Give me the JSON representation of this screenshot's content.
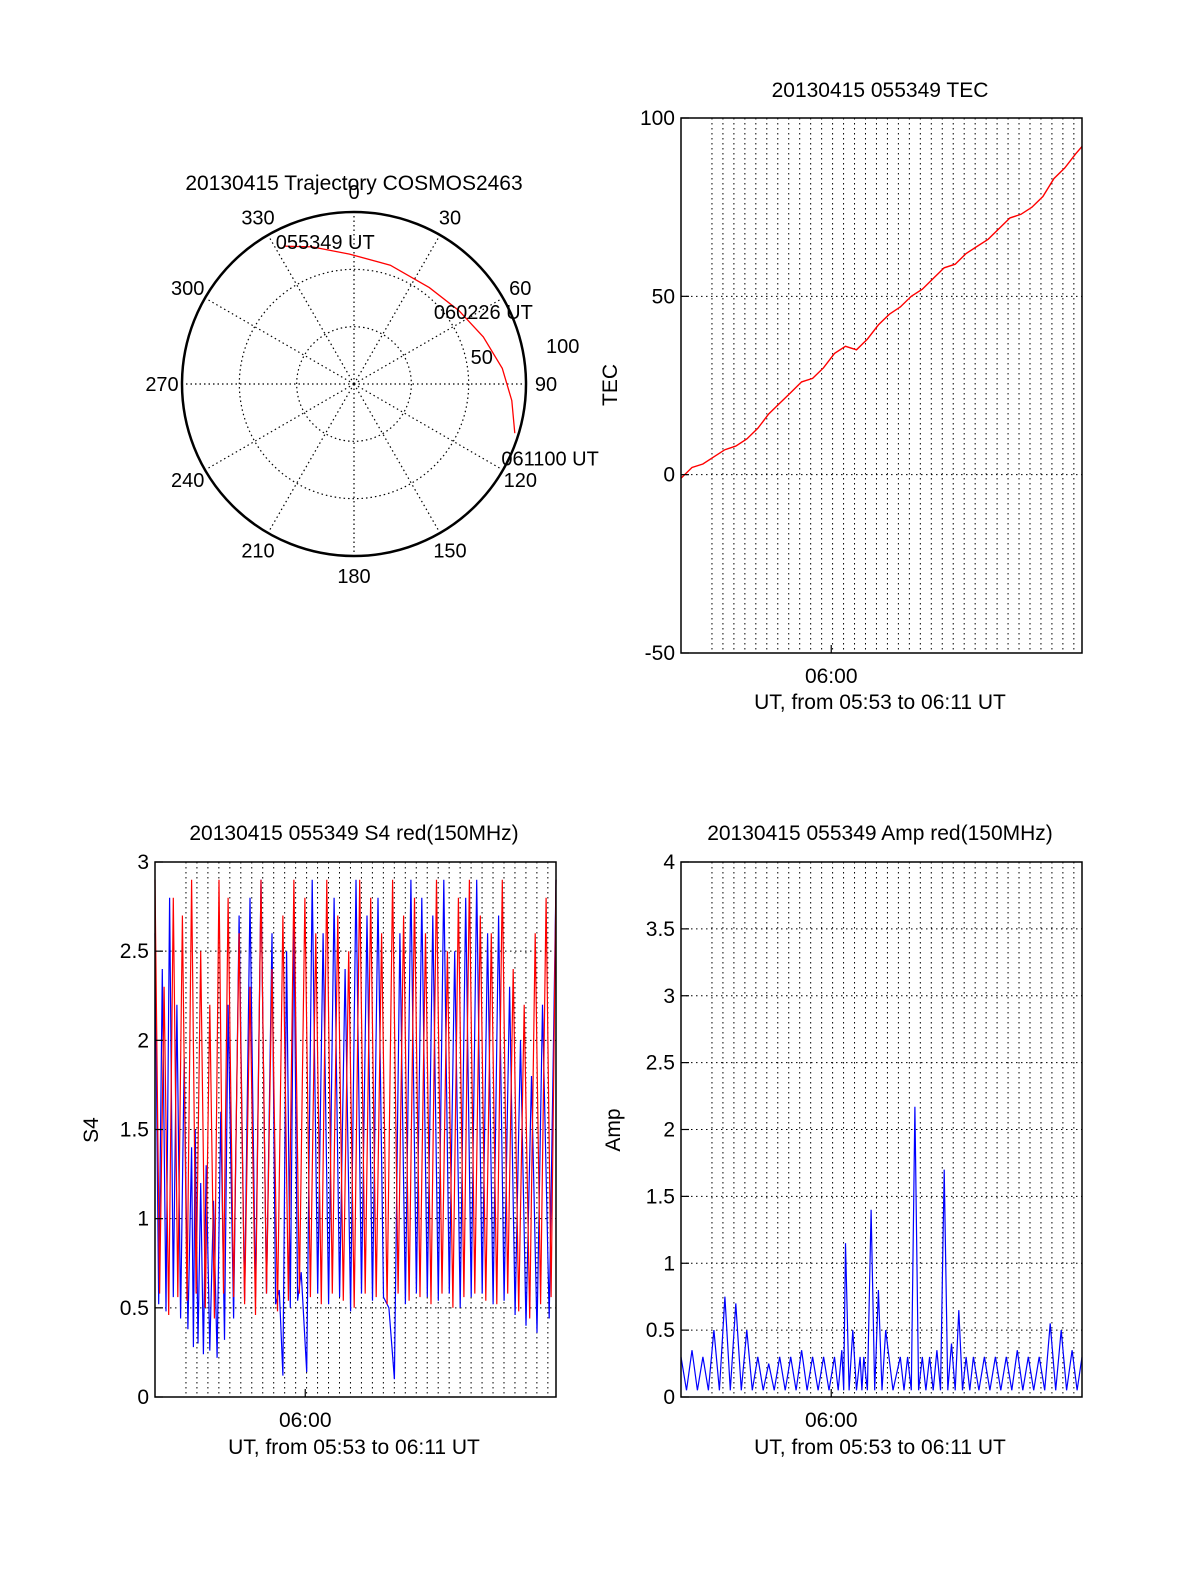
{
  "chart_data": [
    {
      "type": "polar",
      "title": "20130415 Trajectory COSMOS2463",
      "azimuth_labels": [
        "0",
        "30",
        "60",
        "90",
        "120",
        "150",
        "180",
        "210",
        "240",
        "270",
        "300",
        "330"
      ],
      "elevation_labels": [
        "100",
        "50"
      ],
      "grid": "dotted",
      "series": [
        {
          "color": "#ff0000",
          "points": [
            {
              "azimuth": 333,
              "zenith": 81
            },
            {
              "azimuth": 343,
              "zenith": 75
            },
            {
              "azimuth": 358,
              "zenith": 68
            },
            {
              "azimuth": 17,
              "zenith": 65
            },
            {
              "azimuth": 38,
              "zenith": 64
            },
            {
              "azimuth": 55,
              "zenith": 67
            },
            {
              "azimuth": 70,
              "zenith": 72
            },
            {
              "azimuth": 84,
              "zenith": 78
            },
            {
              "azimuth": 96,
              "zenith": 83
            },
            {
              "azimuth": 107,
              "zenith": 88
            }
          ]
        }
      ],
      "annotations": [
        {
          "text": "055349 UT",
          "azimuth": 335,
          "zenith": 82
        },
        {
          "text": "060226 UT",
          "azimuth": 52,
          "zenith": 61
        },
        {
          "text": "061100 UT",
          "azimuth": 115,
          "zenith": 92
        }
      ]
    },
    {
      "type": "line",
      "title": "20130415 055349 TEC",
      "xlabel": "UT, from 05:53 to 06:11 UT",
      "ylabel": "TEC",
      "xlim": [
        0,
        1097
      ],
      "ylim": [
        -50,
        100
      ],
      "xticks": [
        {
          "value": 411,
          "label": "06:00"
        }
      ],
      "yticks": [
        -50,
        0,
        50,
        100
      ],
      "grid": true,
      "series": [
        {
          "color": "#ff0000",
          "x": [
            0,
            30,
            60,
            90,
            120,
            150,
            180,
            210,
            240,
            270,
            300,
            330,
            360,
            390,
            420,
            450,
            480,
            510,
            540,
            570,
            600,
            630,
            660,
            690,
            720,
            750,
            780,
            810,
            840,
            870,
            900,
            930,
            960,
            990,
            1020,
            1050,
            1080,
            1097
          ],
          "y": [
            -1,
            2,
            3,
            5,
            7,
            8,
            10,
            13,
            17,
            20,
            23,
            26,
            27,
            30,
            34,
            36,
            35,
            38,
            42,
            45,
            47,
            50,
            52,
            55,
            58,
            59,
            62,
            64,
            66,
            69,
            72,
            73,
            75,
            78,
            83,
            86,
            90,
            92
          ]
        }
      ]
    },
    {
      "type": "line",
      "title": "20130415 055349 S4 red(150MHz)",
      "xlabel": "UT, from 05:53 to 06:11 UT",
      "ylabel": "S4",
      "xlim": [
        0,
        1097
      ],
      "ylim": [
        0,
        3
      ],
      "xticks": [
        {
          "value": 411,
          "label": "06:00"
        }
      ],
      "yticks": [
        0,
        0.5,
        1,
        1.5,
        2,
        2.5,
        3
      ],
      "grid": true,
      "series": [
        {
          "color": "#0000ff",
          "x": [
            0,
            20,
            40,
            60,
            80,
            100,
            110,
            125,
            140,
            160,
            180,
            200,
            230,
            260,
            290,
            320,
            340,
            360,
            380,
            400,
            430,
            460,
            490,
            520,
            550,
            580,
            610,
            640,
            670,
            700,
            730,
            760,
            790,
            820,
            850,
            880,
            910,
            940,
            970,
            1000,
            1030,
            1060,
            1097
          ],
          "y": [
            2.6,
            2.4,
            2.8,
            2.2,
            1.9,
            1.4,
            1.5,
            1.2,
            1.3,
            1.1,
            1.6,
            2.2,
            2.7,
            2.8,
            2.9,
            2.6,
            0.6,
            2.5,
            2.7,
            0.7,
            2.9,
            2.6,
            2.8,
            2.4,
            2.9,
            2.7,
            2.8,
            0.5,
            2.6,
            2.9,
            2.8,
            2.7,
            2.9,
            2.5,
            2.8,
            2.9,
            2.6,
            2.7,
            2.3,
            2.0,
            1.8,
            2.2,
            2.9
          ]
        },
        {
          "color": "#ff0000",
          "x": [
            0,
            25,
            50,
            75,
            100,
            125,
            150,
            175,
            200,
            230,
            260,
            290,
            320,
            350,
            380,
            410,
            440,
            470,
            500,
            530,
            560,
            590,
            620,
            650,
            680,
            710,
            740,
            770,
            800,
            830,
            860,
            890,
            920,
            950,
            980,
            1010,
            1040,
            1070,
            1097
          ],
          "y": [
            2.9,
            2.3,
            2.8,
            2.7,
            2.9,
            2.5,
            2.2,
            2.9,
            2.8,
            2.6,
            2.3,
            2.9,
            2.4,
            2.7,
            2.9,
            2.8,
            2.6,
            2.9,
            2.7,
            2.5,
            2.9,
            2.8,
            2.6,
            2.9,
            2.7,
            2.8,
            2.6,
            2.9,
            2.5,
            2.8,
            2.9,
            2.7,
            2.6,
            2.9,
            2.4,
            2.2,
            2.6,
            2.8,
            2.9
          ]
        }
      ]
    },
    {
      "type": "line",
      "title": "20130415 055349 Amp red(150MHz)",
      "xlabel": "UT, from 05:53 to 06:11 UT",
      "ylabel": "Amp",
      "xlim": [
        0,
        1097
      ],
      "ylim": [
        0,
        4
      ],
      "xticks": [
        {
          "value": 411,
          "label": "06:00"
        }
      ],
      "yticks": [
        0,
        0.5,
        1,
        1.5,
        2,
        2.5,
        3,
        3.5,
        4
      ],
      "grid": true,
      "series": [
        {
          "color": "#0000ff",
          "x": [
            0,
            30,
            60,
            90,
            120,
            150,
            180,
            210,
            240,
            270,
            300,
            330,
            360,
            390,
            420,
            440,
            450,
            470,
            490,
            500,
            520,
            540,
            560,
            600,
            620,
            640,
            660,
            680,
            700,
            720,
            740,
            760,
            780,
            800,
            830,
            860,
            890,
            920,
            950,
            980,
            1010,
            1040,
            1070,
            1097
          ],
          "y": [
            0.3,
            0.35,
            0.3,
            0.5,
            0.75,
            0.7,
            0.5,
            0.3,
            0.25,
            0.3,
            0.3,
            0.35,
            0.3,
            0.3,
            0.3,
            0.35,
            1.15,
            0.5,
            0.3,
            0.3,
            1.4,
            0.8,
            0.5,
            0.3,
            0.3,
            2.17,
            0.3,
            0.3,
            0.35,
            1.7,
            0.4,
            0.65,
            0.3,
            0.3,
            0.3,
            0.3,
            0.3,
            0.35,
            0.3,
            0.3,
            0.55,
            0.5,
            0.35,
            0.3
          ]
        }
      ]
    }
  ]
}
